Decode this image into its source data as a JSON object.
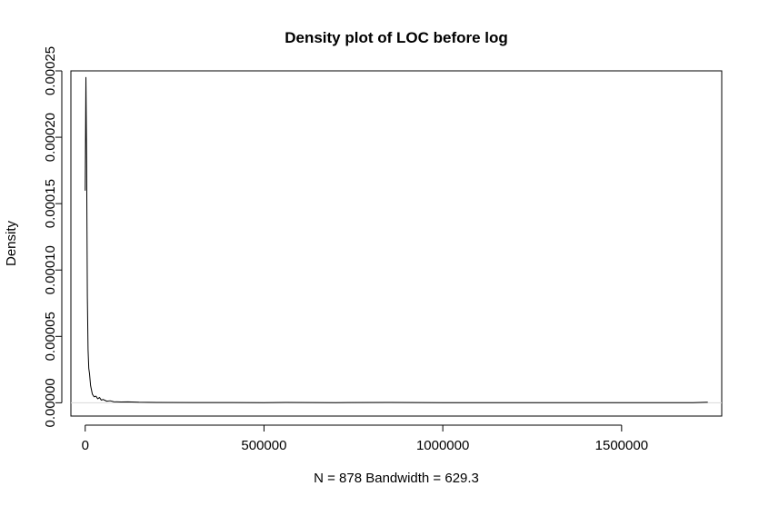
{
  "chart_data": {
    "type": "line",
    "title": "Density plot of LOC before log",
    "xlabel": "N = 878   Bandwidth = 629.3",
    "ylabel": "Density",
    "xlim": [
      -40000,
      1780000
    ],
    "ylim": [
      -1e-05,
      0.00025
    ],
    "x_ticks": [
      0,
      500000,
      1000000,
      1500000
    ],
    "x_tick_labels": [
      "0",
      "500000",
      "1000000",
      "1500000"
    ],
    "y_ticks": [
      0,
      5e-05,
      0.0001,
      0.00015,
      0.0002,
      0.00025
    ],
    "y_tick_labels": [
      "0.00000",
      "0.00005",
      "0.00010",
      "0.00015",
      "0.00020",
      "0.00025"
    ],
    "grid": false,
    "legend": false,
    "baseline": 0,
    "series": [
      {
        "x": [
          0,
          2000,
          4000,
          6000,
          8000,
          10000,
          12000,
          15000,
          20000,
          25000,
          30000,
          35000,
          40000,
          45000,
          50000,
          60000,
          70000,
          80000,
          100000,
          120000,
          150000,
          200000,
          300000,
          500000,
          560000,
          700000,
          850000,
          1000000,
          1200000,
          1400000,
          1600000,
          1700000,
          1740000
        ],
        "y": [
          0.00016,
          0.000245,
          0.00018,
          8e-05,
          4e-05,
          2.6e-05,
          2.2e-05,
          1.3e-05,
          6.5e-06,
          4.5e-06,
          5e-06,
          3e-06,
          4e-06,
          2e-06,
          2.5e-06,
          1.2e-06,
          1.5e-06,
          8e-07,
          6e-07,
          7e-07,
          4e-07,
          3e-07,
          2e-07,
          1e-07,
          3e-07,
          1e-07,
          3e-07,
          1e-07,
          1e-07,
          1e-07,
          1e-07,
          1e-07,
          4e-07
        ]
      }
    ]
  }
}
